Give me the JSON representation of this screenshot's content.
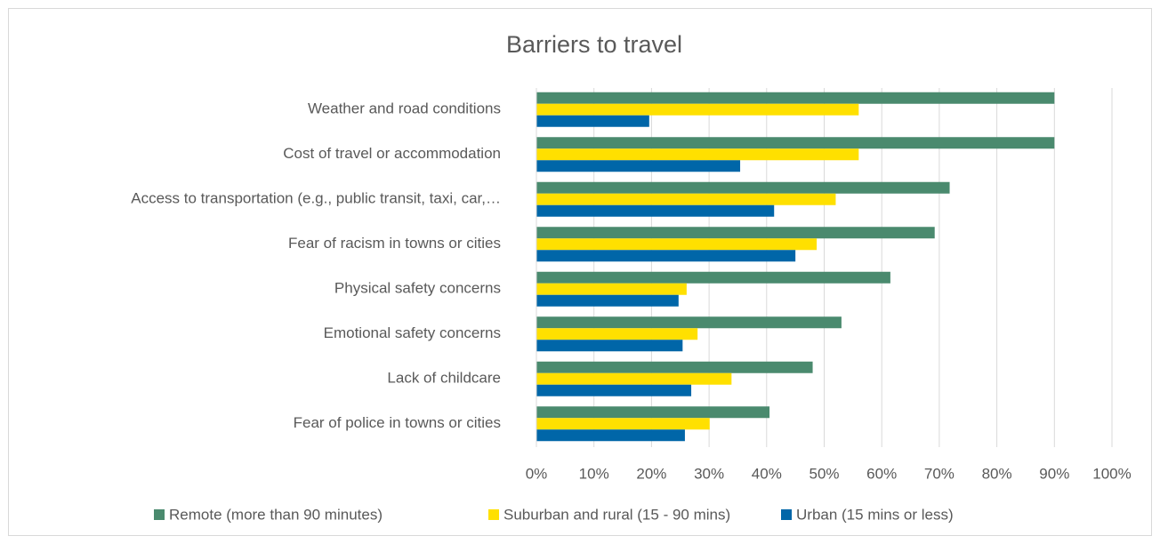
{
  "chart_data": {
    "type": "hbar",
    "title": "Barriers to travel",
    "categories": [
      "Weather and road conditions",
      "Cost of travel or accommodation",
      "Access to transportation (e.g., public transit, taxi, car,…",
      "Fear of racism in towns or cities",
      "Physical safety concerns",
      "Emotional safety concerns",
      "Lack of childcare",
      "Fear of police in towns or cities"
    ],
    "series": [
      {
        "name": "Remote (more than 90 minutes)",
        "color": "#4a8a6e",
        "values": [
          90,
          90,
          71.8,
          69.2,
          61.5,
          53,
          48,
          40.5
        ]
      },
      {
        "name": "Suburban and rural (15 - 90 mins)",
        "color": "#ffe000",
        "values": [
          56,
          56,
          52,
          48.7,
          26.1,
          28,
          33.9,
          30.1
        ]
      },
      {
        "name": "Urban (15 mins or less)",
        "color": "#0066a8",
        "values": [
          19.6,
          35.4,
          41.3,
          45,
          24.7,
          25.4,
          26.9,
          25.8
        ]
      }
    ],
    "xlim": [
      0,
      100
    ],
    "xticks": [
      {
        "value": 0,
        "label": "0%"
      },
      {
        "value": 10,
        "label": "10%"
      },
      {
        "value": 20,
        "label": "20%"
      },
      {
        "value": 30,
        "label": "30%"
      },
      {
        "value": 40,
        "label": "40%"
      },
      {
        "value": 50,
        "label": "50%"
      },
      {
        "value": 60,
        "label": "60%"
      },
      {
        "value": 70,
        "label": "70%"
      },
      {
        "value": 80,
        "label": "80%"
      },
      {
        "value": 90,
        "label": "90%"
      },
      {
        "value": 100,
        "label": "100%"
      }
    ],
    "grid": true,
    "legend": "bottom"
  }
}
